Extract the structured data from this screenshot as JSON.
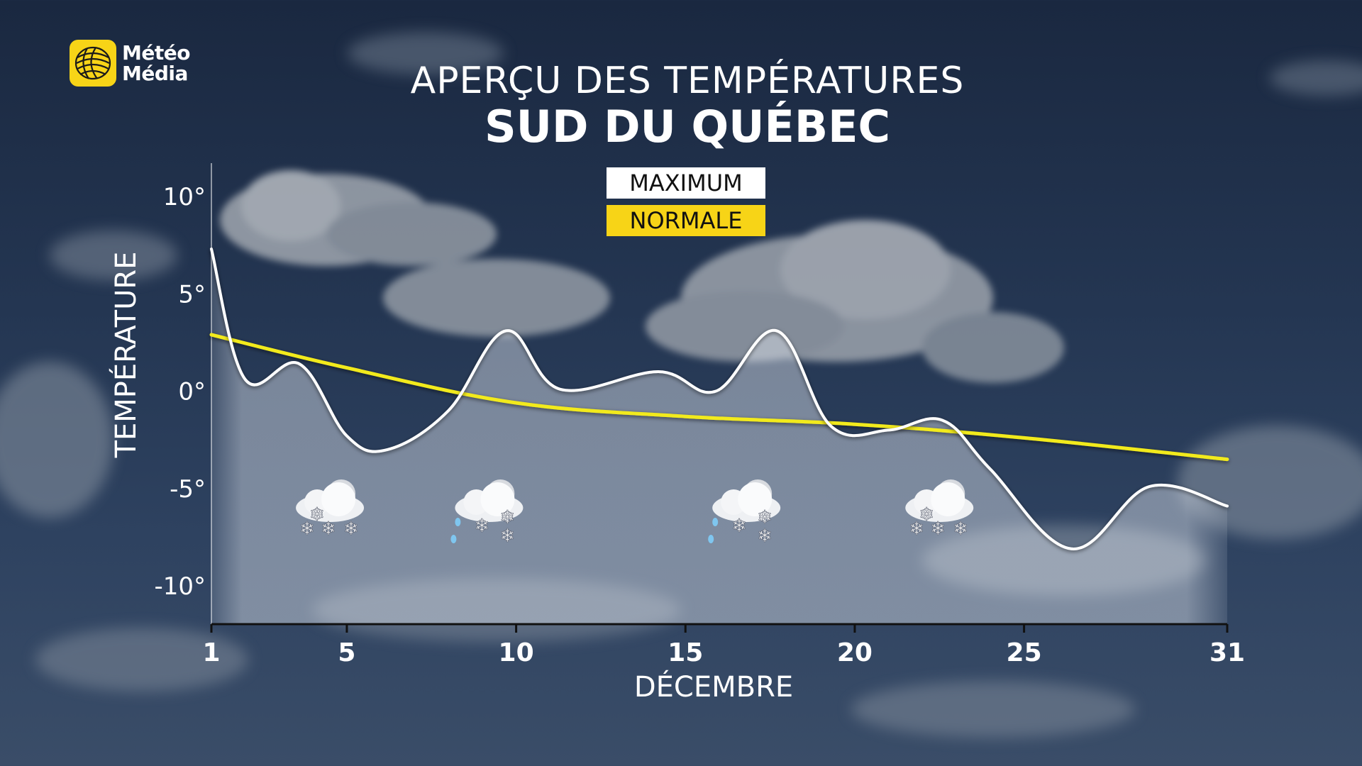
{
  "brand": {
    "line1": "Météo",
    "line2": "Média",
    "accent": "#f7d417"
  },
  "title": "APERÇU DES TEMPÉRATURES",
  "subtitle": "SUD DU QUÉBEC",
  "legend": {
    "maximum": "MAXIMUM",
    "normale": "NORMALE"
  },
  "colors": {
    "maximum": "#ffffff",
    "normale": "#f2ea1f",
    "background": "#243652"
  },
  "chart_data": {
    "type": "line",
    "title": "APERÇU DES TEMPÉRATURES",
    "subtitle": "SUD DU QUÉBEC",
    "xlabel": "DÉCEMBRE",
    "ylabel": "TEMPÉRATURE",
    "x_ticks": [
      1,
      5,
      10,
      15,
      20,
      25,
      31
    ],
    "x_tick_labels": [
      "1",
      "5",
      "10",
      "15",
      "20",
      "25",
      "31"
    ],
    "y_ticks": [
      10,
      5,
      0,
      -5,
      -10
    ],
    "y_tick_labels": [
      "10°",
      "5°",
      "0°",
      "-5°",
      "-10°"
    ],
    "xlim": [
      1,
      31
    ],
    "ylim": [
      -12,
      10
    ],
    "grid": false,
    "legend_position": "top-center",
    "series": [
      {
        "name": "MAXIMUM",
        "x": [
          1,
          2,
          3.6,
          5,
          6.2,
          8,
          9.7,
          11.3,
          14.2,
          15.9,
          17.7,
          19.3,
          21,
          22.6,
          24,
          26.4,
          28.7,
          31
        ],
        "y": [
          7.3,
          0.6,
          1.4,
          -2.3,
          -3.0,
          -1.0,
          3.1,
          0.1,
          1.0,
          0,
          3.1,
          -1.8,
          -2.0,
          -1.5,
          -4.0,
          -8.1,
          -4.9,
          -5.9
        ]
      },
      {
        "name": "NORMALE",
        "x": [
          1,
          5,
          10,
          15,
          20,
          25,
          31
        ],
        "y": [
          2.9,
          1.2,
          -0.6,
          -1.3,
          -1.7,
          -2.4,
          -3.5
        ]
      }
    ],
    "weather_icons": [
      {
        "day": 4.5,
        "icon": "snow-icon"
      },
      {
        "day": 9.2,
        "icon": "snow-and-rain-icon"
      },
      {
        "day": 16.8,
        "icon": "snow-and-rain-icon"
      },
      {
        "day": 22.5,
        "icon": "snow-icon"
      }
    ]
  }
}
